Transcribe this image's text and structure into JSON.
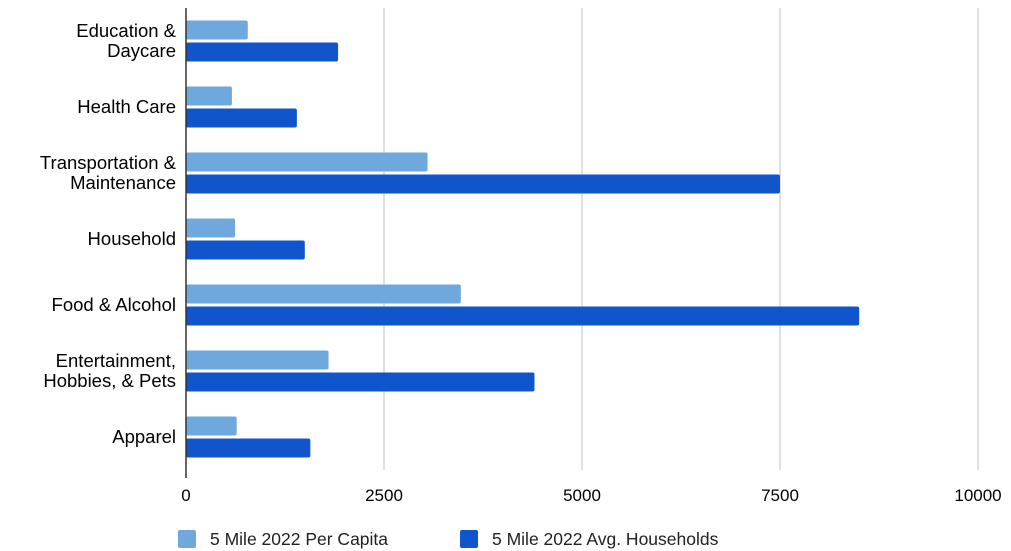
{
  "chart_data": {
    "type": "bar",
    "orientation": "horizontal",
    "categories": [
      [
        "Education &",
        "Daycare"
      ],
      [
        "Health Care"
      ],
      [
        "Transportation &",
        "Maintenance"
      ],
      [
        "Household"
      ],
      [
        "Food & Alcohol"
      ],
      [
        "Entertainment,",
        "Hobbies, & Pets"
      ],
      [
        "Apparel"
      ]
    ],
    "series": [
      {
        "name": "5 Mile 2022 Per Capita",
        "color": "#6fa8dc",
        "values": [
          780,
          580,
          3050,
          620,
          3470,
          1800,
          640
        ]
      },
      {
        "name": "5 Mile 2022 Avg. Households",
        "color": "#1155cc",
        "values": [
          1920,
          1400,
          7500,
          1500,
          8500,
          4400,
          1570
        ]
      }
    ],
    "xlim": [
      0,
      10000
    ],
    "xticks": [
      0,
      2500,
      5000,
      7500,
      10000
    ],
    "grid": "vertical",
    "legend": "bottom",
    "title": "",
    "xlabel": "",
    "ylabel": ""
  }
}
